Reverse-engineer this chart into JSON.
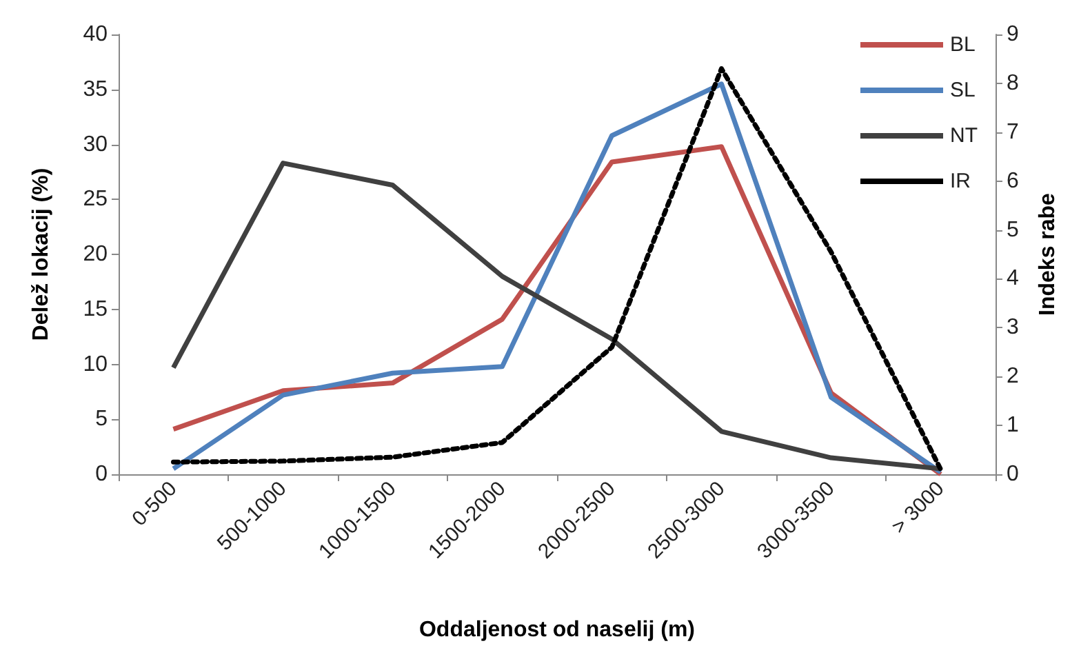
{
  "chart_data": {
    "type": "line",
    "xlabel": "Oddaljenost od naselij (m)",
    "ylabel": "Delež lokacij (%)",
    "y2label": "Indeks rabe",
    "categories": [
      "0-500",
      "500-1000",
      "1000-1500",
      "1500-2000",
      "2000-2500",
      "2500-3000",
      "3000-3500",
      "> 3000"
    ],
    "series": [
      {
        "name": "BL",
        "color": "#c0504d",
        "values": [
          4.1,
          7.6,
          8.3,
          14.1,
          28.4,
          29.8,
          7.4,
          0
        ]
      },
      {
        "name": "SL",
        "color": "#4f81bd",
        "values": [
          0.5,
          7.2,
          9.2,
          9.8,
          30.8,
          35.5,
          7.0,
          0.2
        ]
      },
      {
        "name": "NT",
        "color": "#404040",
        "values": [
          9.7,
          28.3,
          26.3,
          18.0,
          12.3,
          3.9,
          1.5,
          0.5
        ]
      },
      {
        "name": "IR",
        "color": "#000000",
        "axis": "y2",
        "line_style": "dotted",
        "values": [
          0.25,
          0.27,
          0.35,
          0.65,
          2.6,
          8.3,
          4.55,
          0.1
        ]
      }
    ],
    "ylim": [
      0,
      40
    ],
    "yticks": [
      0,
      5,
      10,
      15,
      20,
      25,
      30,
      35,
      40
    ],
    "y2lim": [
      0,
      9
    ],
    "y2ticks": [
      0,
      1,
      2,
      3,
      4,
      5,
      6,
      7,
      8,
      9
    ],
    "grid": false,
    "legend": "top right",
    "marker": "none",
    "line_style": "solid"
  }
}
